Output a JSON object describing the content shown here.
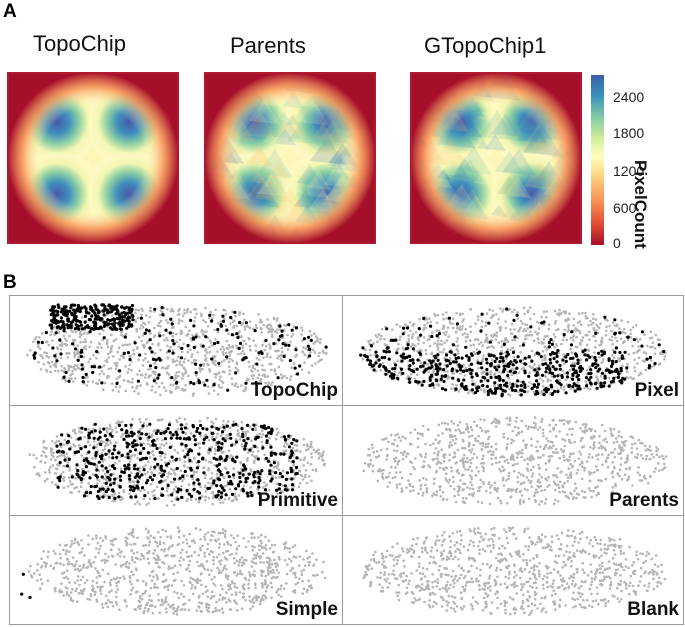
{
  "panel_a": {
    "letter": "A",
    "heatmaps": [
      {
        "title": "TopoChip",
        "style": "smooth"
      },
      {
        "title": "Parents",
        "style": "noisy"
      },
      {
        "title": "GTopoChip1",
        "style": "noisy"
      }
    ],
    "colorbar": {
      "label": "PixelCount",
      "ticks": [
        "0",
        "600",
        "1200",
        "1800",
        "2400"
      ],
      "max": 2700
    }
  },
  "panel_b": {
    "letter": "B",
    "panels": [
      {
        "label": "TopoChip",
        "highlight": "dense",
        "region": "top-left-cluster"
      },
      {
        "label": "Pixel",
        "highlight": "dense",
        "region": "bottom-left"
      },
      {
        "label": "Primitive",
        "highlight": "dense",
        "region": "center"
      },
      {
        "label": "Parents",
        "highlight": "sparse",
        "region": "none"
      },
      {
        "label": "Simple",
        "highlight": "few",
        "region": "left-edge"
      },
      {
        "label": "Blank",
        "highlight": "none",
        "region": "none"
      }
    ],
    "colors": {
      "background_points": "#b5b5b5",
      "highlight_points": "#000000"
    }
  }
}
